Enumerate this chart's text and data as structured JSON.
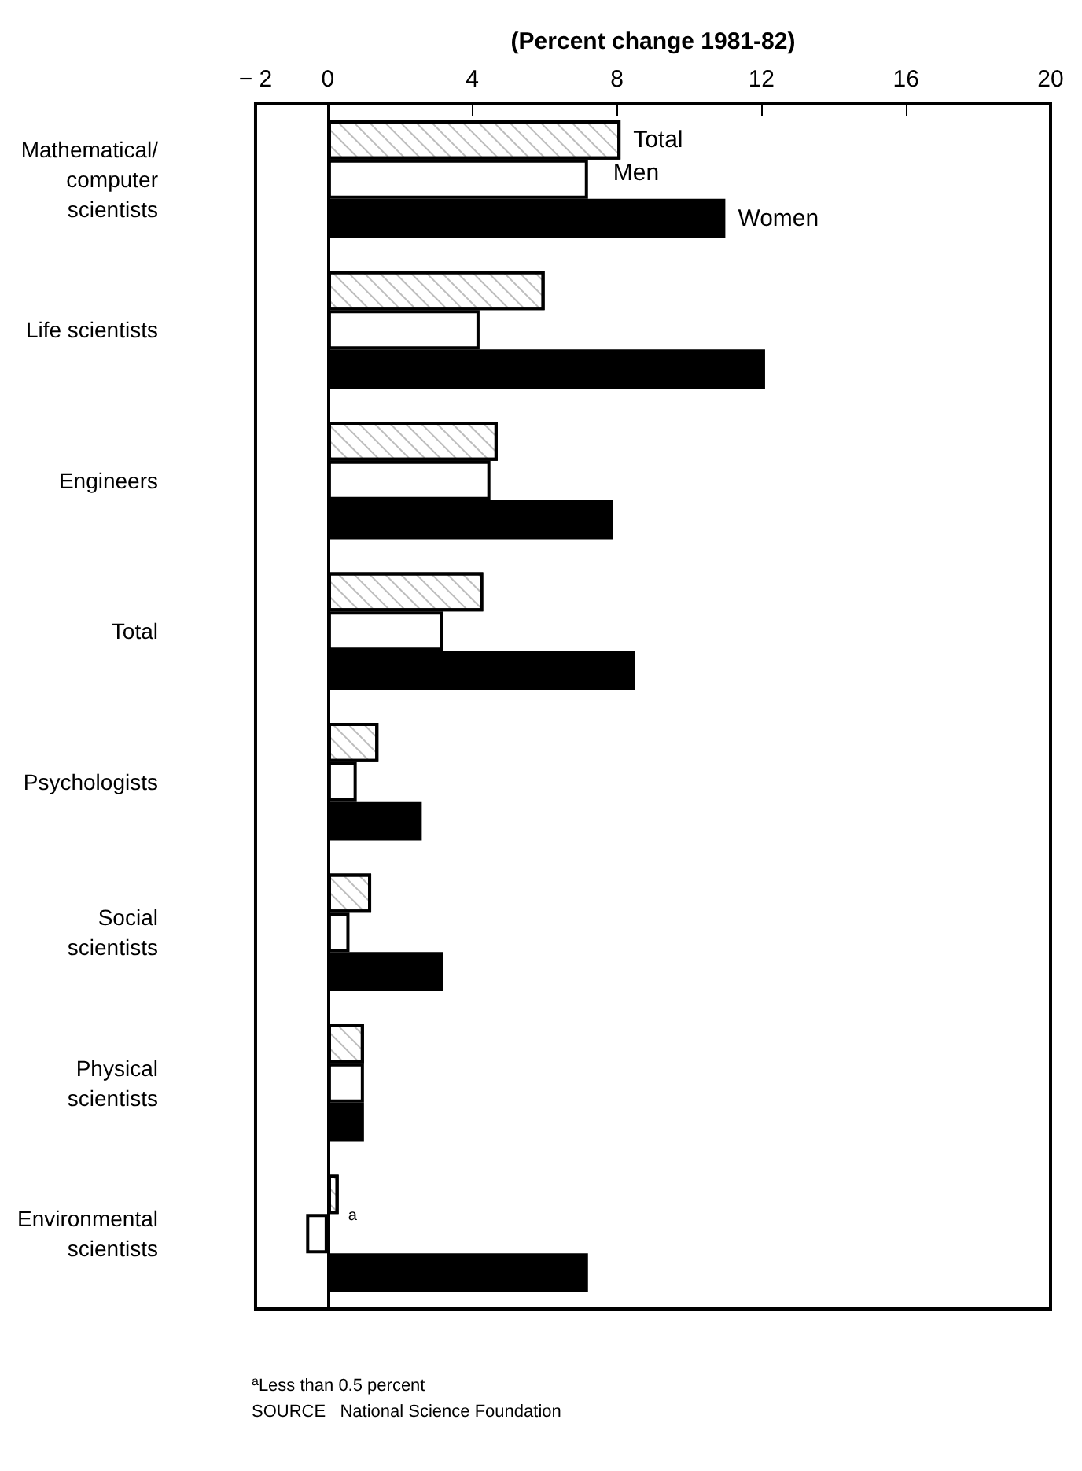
{
  "chart_data": {
    "type": "bar",
    "orientation": "horizontal",
    "xlabel": "(Percent change 1981-82)",
    "categories": [
      "Mathematical/\ncomputer\nscientists",
      "Life scientists",
      "Engineers",
      "Total",
      "Psychologists",
      "Social\nscientists",
      "Physical\nscientists",
      "Environmental\nscientists"
    ],
    "series": [
      {
        "name": "Total",
        "color": "#ffffff",
        "values": [
          8.1,
          6.0,
          4.7,
          4.3,
          1.4,
          1.2,
          1.0,
          0.3
        ],
        "value_labels": [
          null,
          null,
          null,
          null,
          null,
          null,
          null,
          "a"
        ]
      },
      {
        "name": "Men",
        "color": "#ffffff",
        "values": [
          7.2,
          4.2,
          4.5,
          3.2,
          0.8,
          0.6,
          1.0,
          -0.6
        ]
      },
      {
        "name": "Women",
        "color": "#000000",
        "values": [
          11.0,
          12.1,
          7.9,
          8.5,
          2.6,
          3.2,
          1.0,
          7.2
        ]
      }
    ],
    "xlim": [
      -2,
      20
    ],
    "xticks": [
      -2,
      0,
      4,
      8,
      12,
      16,
      20
    ],
    "annotations": [
      "$^{a}$Less than 0.5 percent",
      "SOURCE   National Science Foundation"
    ]
  }
}
